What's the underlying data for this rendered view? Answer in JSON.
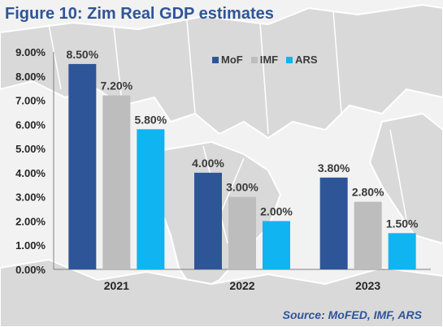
{
  "title": "Figure 10: Zim Real GDP estimates",
  "source": "Source: MoFED, IMF, ARS",
  "colors": {
    "title": "#2f5497",
    "MoF": "#2e5597",
    "IMF": "#bdbdbd",
    "ARS": "#0fb4f0",
    "map_land": "#d9d9d9",
    "map_edge": "#ffffff"
  },
  "chart_data": {
    "type": "bar",
    "title": "Figure 10: Zim Real GDP estimates",
    "categories": [
      "2021",
      "2022",
      "2023"
    ],
    "series": [
      {
        "name": "MoF",
        "values": [
          8.5,
          4.0,
          3.8
        ],
        "labels": [
          "8.50%",
          "4.00%",
          "3.80%"
        ]
      },
      {
        "name": "IMF",
        "values": [
          7.2,
          3.0,
          2.8
        ],
        "labels": [
          "7.20%",
          "3.00%",
          "2.80%"
        ]
      },
      {
        "name": "ARS",
        "values": [
          5.8,
          2.0,
          1.5
        ],
        "labels": [
          "5.80%",
          "2.00%",
          "1.50%"
        ]
      }
    ],
    "ylim": [
      0,
      9
    ],
    "yticks": [
      "0.00%",
      "1.00%",
      "2.00%",
      "3.00%",
      "4.00%",
      "5.00%",
      "6.00%",
      "7.00%",
      "8.00%",
      "9.00%"
    ],
    "grid": false,
    "legend": "top-right",
    "xlabel": "",
    "ylabel": ""
  }
}
